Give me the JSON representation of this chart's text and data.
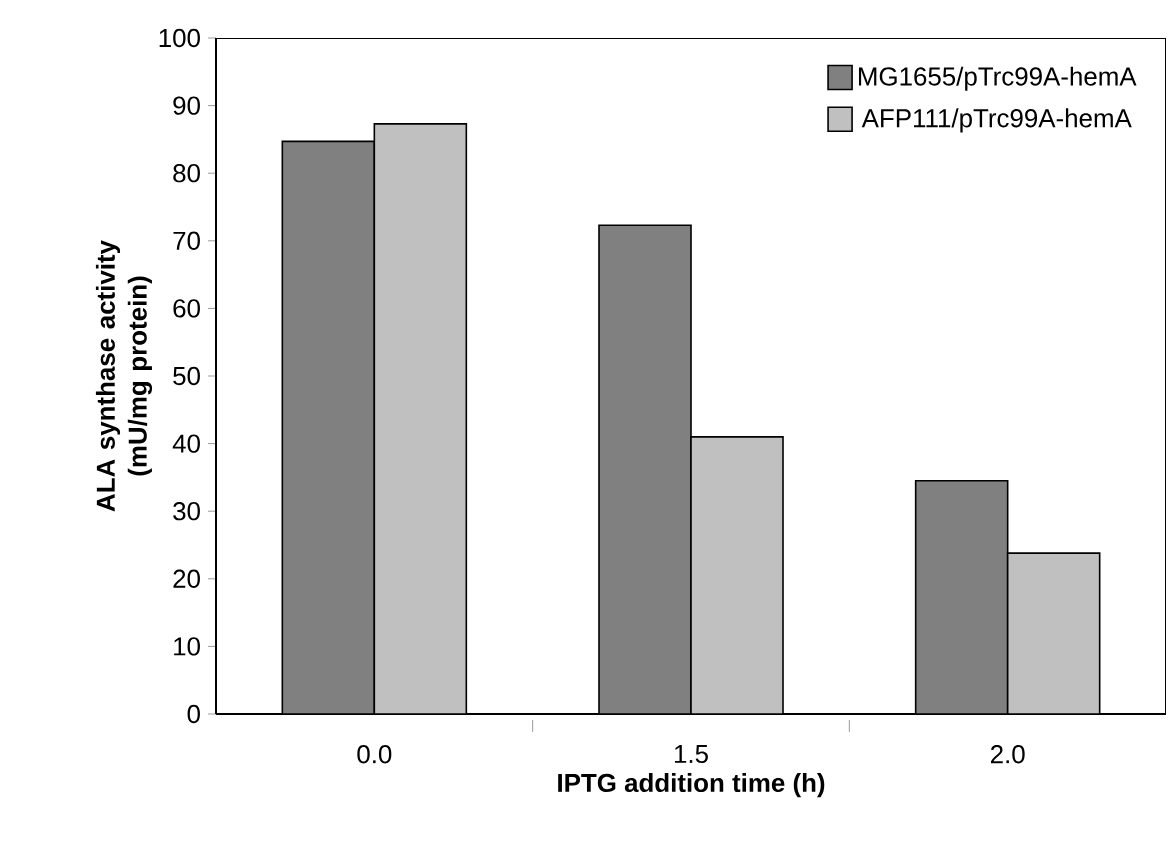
{
  "chart_data": {
    "type": "bar",
    "xlabel": "IPTG addition time (h)",
    "ylabel": "ALA synthase activity (mU/mg protein)",
    "categories": [
      "0.0",
      "1.5",
      "2.0"
    ],
    "series": [
      {
        "name": "MG1655/pTrc99A-hemA",
        "color": "#808080",
        "values": [
          84.7,
          72.3,
          34.5
        ]
      },
      {
        "name": "AFP111/pTrc99A-hemA",
        "color": "#c0c0c0",
        "values": [
          87.3,
          41.0,
          23.8
        ]
      }
    ],
    "ylim": [
      0,
      100
    ],
    "yticks": [
      0,
      10,
      20,
      30,
      40,
      50,
      60,
      70,
      80,
      90,
      100
    ],
    "grid": false,
    "legend": "top right"
  }
}
